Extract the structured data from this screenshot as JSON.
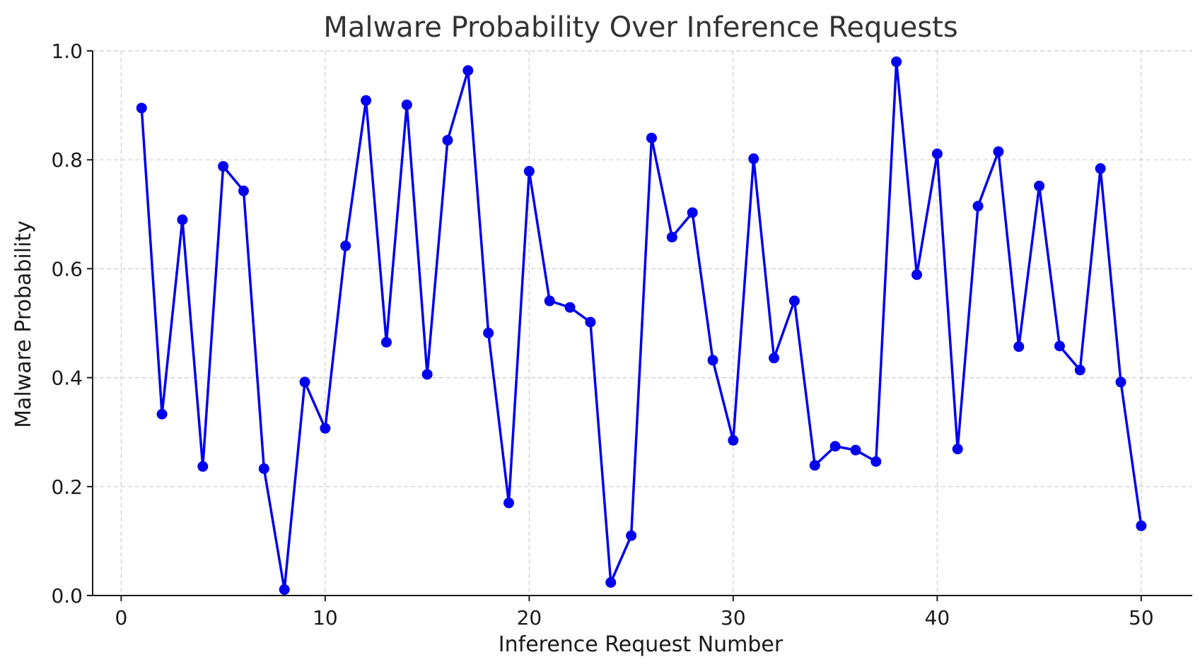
{
  "chart_data": {
    "type": "line",
    "title": "Malware Probability Over Inference Requests",
    "xlabel": "Inference Request Number",
    "ylabel": "Malware Probability",
    "xlim": [
      -1.4,
      52.5
    ],
    "ylim": [
      0.0,
      1.0
    ],
    "xticks": [
      0,
      10,
      20,
      30,
      40,
      50
    ],
    "xtick_labels": [
      "0",
      "10",
      "20",
      "30",
      "40",
      "50"
    ],
    "yticks": [
      0.0,
      0.2,
      0.4,
      0.6,
      0.8,
      1.0
    ],
    "ytick_labels": [
      "0.0",
      "0.2",
      "0.4",
      "0.6",
      "0.8",
      "1.0"
    ],
    "grid": true,
    "line_color": "#0000ee",
    "series": [
      {
        "x": [
          1,
          2,
          3,
          4,
          5,
          6,
          7,
          8,
          9,
          10,
          11,
          12,
          13,
          14,
          15,
          16,
          17,
          18,
          19,
          20,
          21,
          22,
          23,
          24,
          25,
          26,
          27,
          28,
          29,
          30,
          31,
          32,
          33,
          34,
          35,
          36,
          37,
          38,
          39,
          40,
          41,
          42,
          43,
          44,
          45,
          46,
          47,
          48,
          49,
          50
        ],
        "values": [
          0.895,
          0.333,
          0.69,
          0.237,
          0.788,
          0.743,
          0.233,
          0.011,
          0.392,
          0.307,
          0.642,
          0.909,
          0.465,
          0.901,
          0.406,
          0.836,
          0.964,
          0.482,
          0.17,
          0.779,
          0.541,
          0.529,
          0.502,
          0.024,
          0.11,
          0.84,
          0.658,
          0.703,
          0.432,
          0.285,
          0.802,
          0.436,
          0.541,
          0.239,
          0.274,
          0.267,
          0.246,
          0.98,
          0.589,
          0.811,
          0.269,
          0.715,
          0.815,
          0.457,
          0.752,
          0.458,
          0.414,
          0.784,
          0.392,
          0.128
        ]
      }
    ]
  }
}
